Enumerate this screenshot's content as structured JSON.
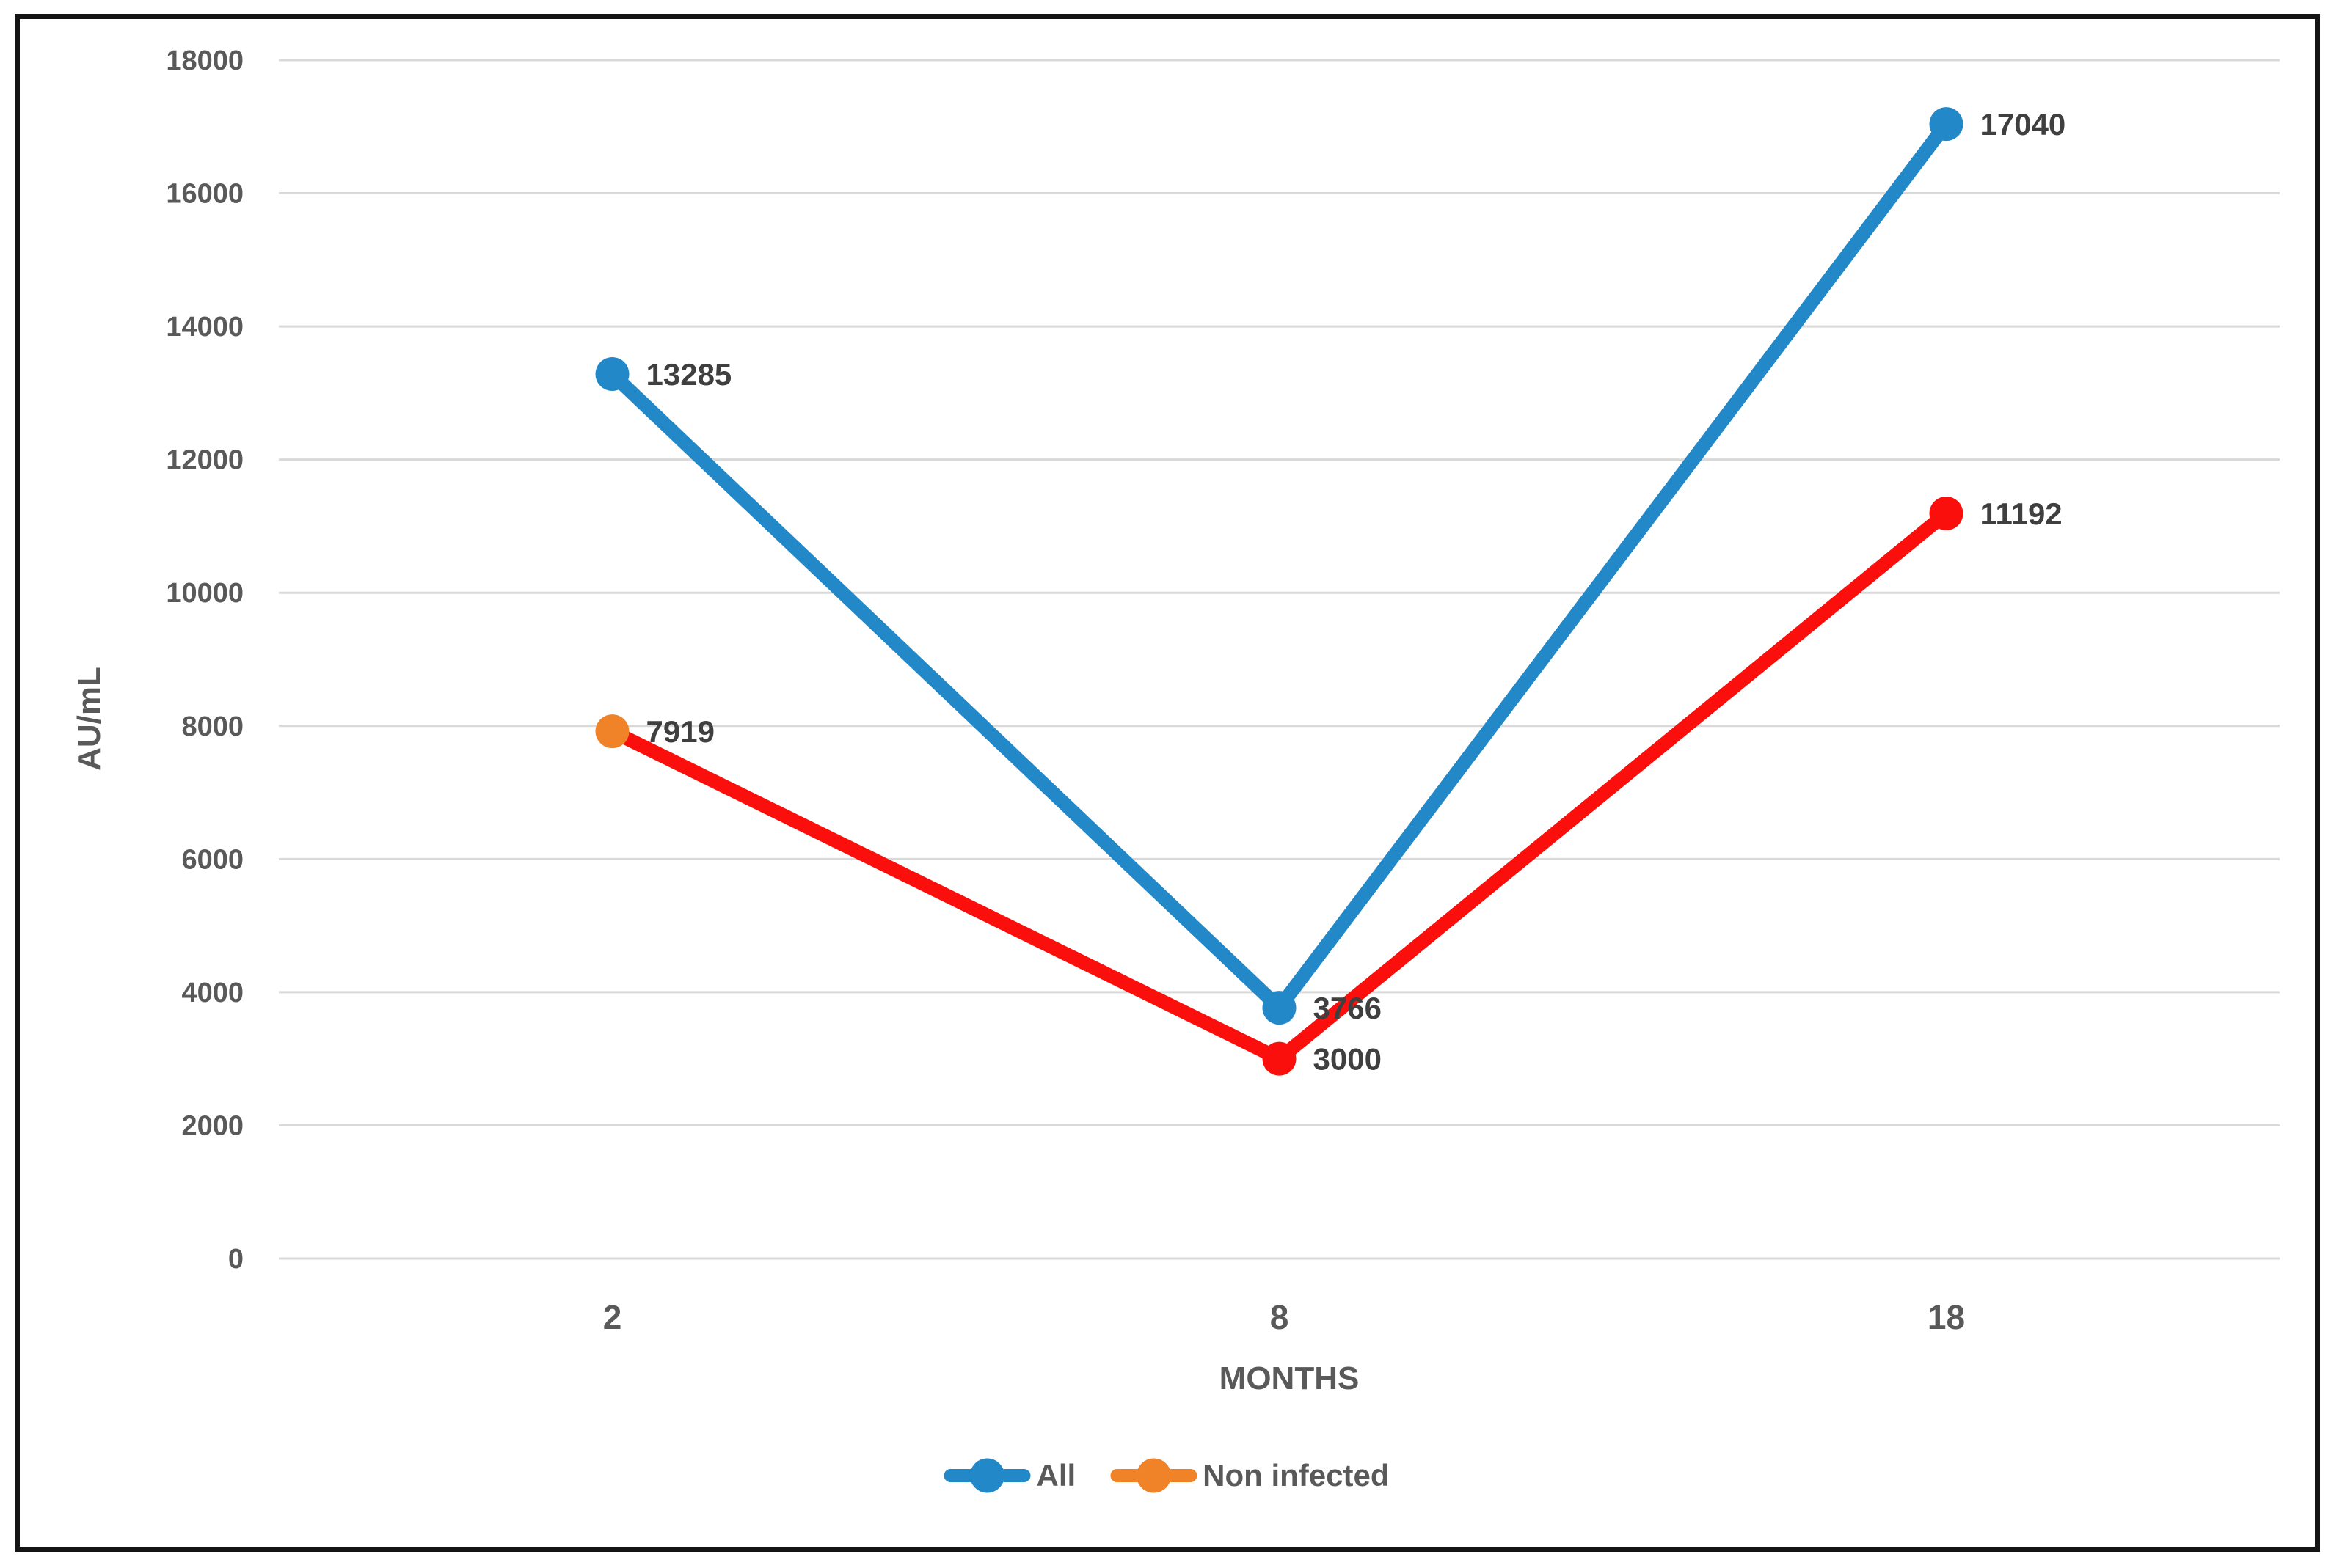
{
  "chart_data": {
    "type": "line",
    "xlabel": "MONTHS",
    "ylabel": "AU/mL",
    "categories": [
      "2",
      "8",
      "18"
    ],
    "ylim": [
      0,
      18000
    ],
    "y_ticks": [
      0,
      2000,
      4000,
      6000,
      8000,
      10000,
      12000,
      14000,
      16000,
      18000
    ],
    "grid": true,
    "legend_position": "bottom-center",
    "series": [
      {
        "name": "All",
        "values": [
          13285,
          3766,
          17040
        ],
        "data_labels": [
          "13285",
          "3766",
          "17040"
        ],
        "line_color": "#2288C8",
        "marker_colors": [
          "#2288C8",
          "#2288C8",
          "#2288C8"
        ]
      },
      {
        "name": "Non infected",
        "values": [
          7919,
          3000,
          11192
        ],
        "data_labels": [
          "7919",
          "3000",
          "11192"
        ],
        "line_color": "#FB0F0C",
        "marker_colors": [
          "#F08228",
          "#FB0F0C",
          "#FB0F0C"
        ]
      }
    ],
    "legend": {
      "items": [
        {
          "label": "All",
          "color": "#2288C8"
        },
        {
          "label": "Non infected",
          "color": "#F08228"
        }
      ]
    },
    "colors": {
      "background": "#FFFFFF",
      "border": "#141414",
      "grid": "#D9D9D9",
      "axis_text": "#595959",
      "data_label_text": "#3F3F3F"
    }
  }
}
